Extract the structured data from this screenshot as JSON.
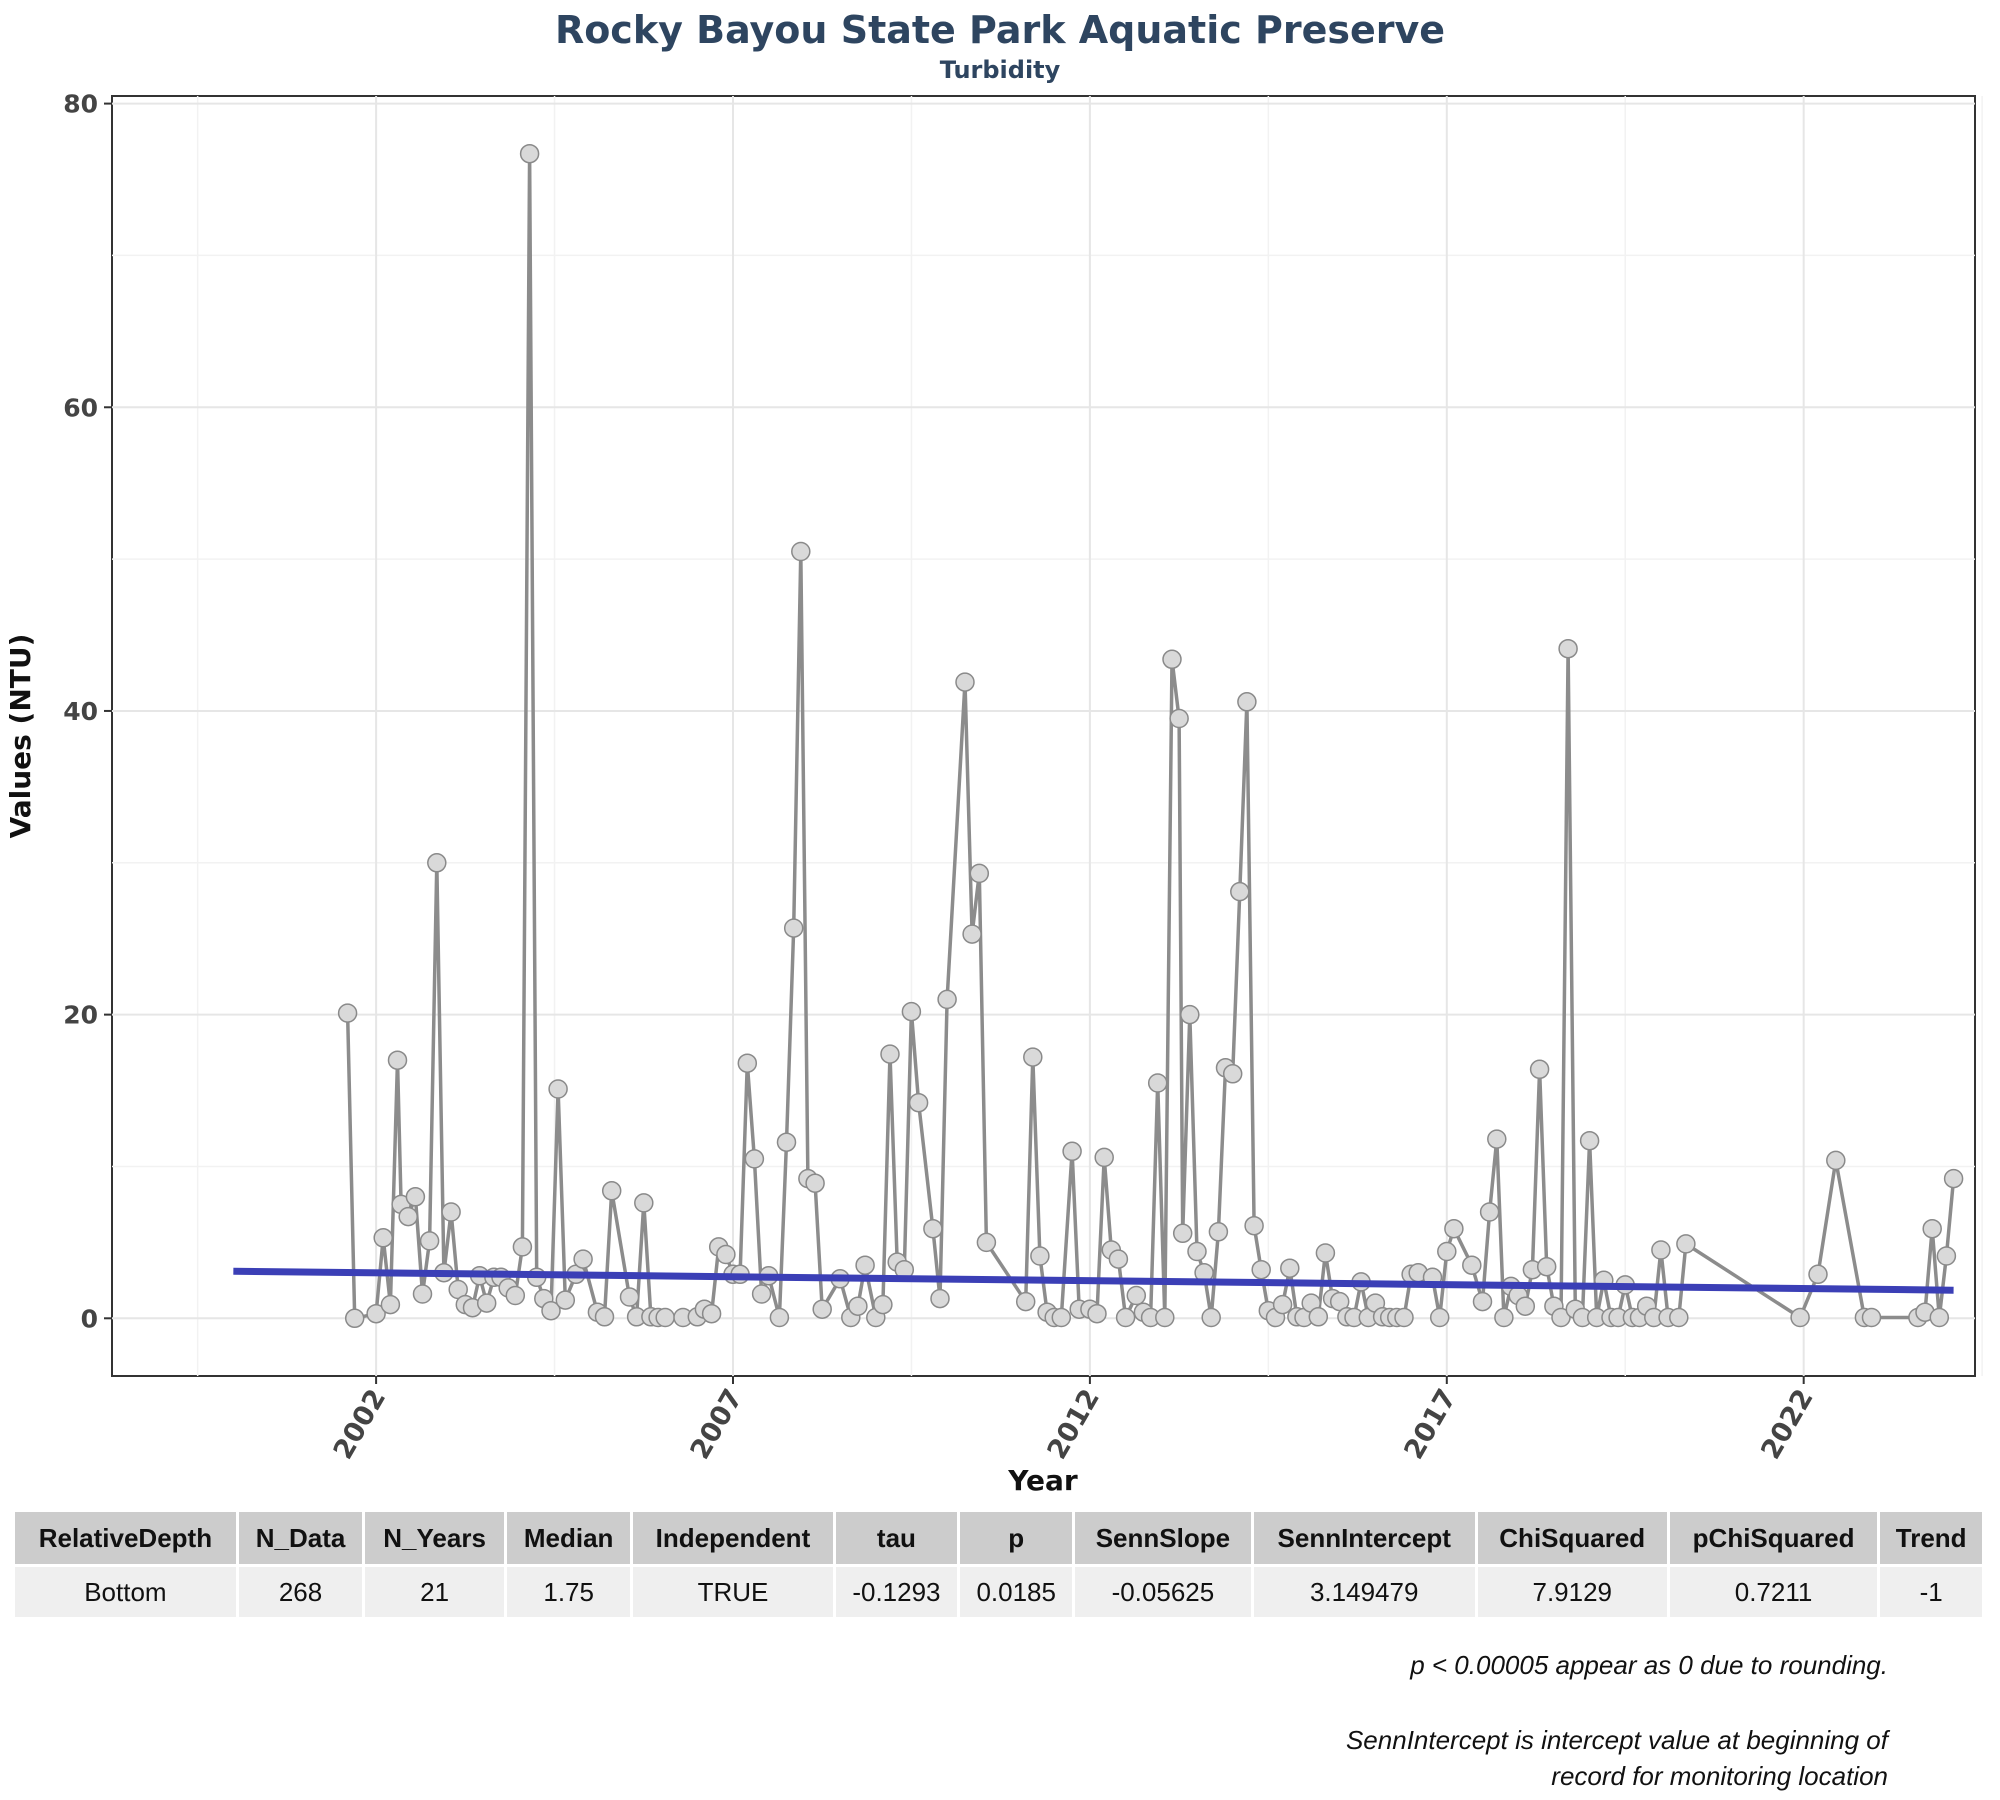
{
  "title": "Rocky Bayou State Park Aquatic Preserve",
  "subtitle": "Turbidity",
  "chart_data": {
    "type": "line",
    "xlabel": "Year",
    "ylabel": "Values (NTU)",
    "xlim": [
      1998.3,
      2024.4
    ],
    "ylim": [
      -3.8,
      80.5
    ],
    "x_ticks": [
      2002,
      2007,
      2012,
      2017,
      2022
    ],
    "y_ticks": [
      0,
      20,
      40,
      60,
      80
    ],
    "grid": true,
    "colors": {
      "series_line": "#8c8c8c",
      "series_point": "#d9d9d9",
      "trend_line": "#3b3fb6"
    },
    "series": [
      {
        "values": [
          [
            2001.6,
            20.1
          ],
          [
            2001.7,
            0
          ],
          [
            2002.0,
            0.3
          ],
          [
            2002.1,
            5.3
          ],
          [
            2002.2,
            0.9
          ],
          [
            2002.3,
            17.0
          ],
          [
            2002.35,
            7.5
          ],
          [
            2002.45,
            6.7
          ],
          [
            2002.55,
            8.0
          ],
          [
            2002.65,
            1.6
          ],
          [
            2002.75,
            5.1
          ],
          [
            2002.85,
            30.0
          ],
          [
            2002.95,
            3.0
          ],
          [
            2003.05,
            7.0
          ],
          [
            2003.15,
            1.9
          ],
          [
            2003.25,
            0.9
          ],
          [
            2003.35,
            0.7
          ],
          [
            2003.45,
            2.8
          ],
          [
            2003.55,
            1.0
          ],
          [
            2003.65,
            2.7
          ],
          [
            2003.75,
            2.7
          ],
          [
            2003.85,
            2.0
          ],
          [
            2003.95,
            1.5
          ],
          [
            2004.05,
            4.7
          ],
          [
            2004.15,
            76.7
          ],
          [
            2004.25,
            2.7
          ],
          [
            2004.35,
            1.3
          ],
          [
            2004.45,
            0.5
          ],
          [
            2004.55,
            15.1
          ],
          [
            2004.65,
            1.2
          ],
          [
            2004.8,
            2.9
          ],
          [
            2004.9,
            3.9
          ],
          [
            2005.1,
            0.4
          ],
          [
            2005.2,
            0.1
          ],
          [
            2005.3,
            8.4
          ],
          [
            2005.55,
            1.4
          ],
          [
            2005.65,
            0.1
          ],
          [
            2005.75,
            7.6
          ],
          [
            2005.85,
            0.1
          ],
          [
            2005.95,
            0.05
          ],
          [
            2006.05,
            0.05
          ],
          [
            2006.3,
            0.05
          ],
          [
            2006.5,
            0.1
          ],
          [
            2006.6,
            0.6
          ],
          [
            2006.7,
            0.3
          ],
          [
            2006.8,
            4.7
          ],
          [
            2006.9,
            4.2
          ],
          [
            2007.0,
            2.9
          ],
          [
            2007.1,
            2.9
          ],
          [
            2007.2,
            16.8
          ],
          [
            2007.3,
            10.5
          ],
          [
            2007.4,
            1.6
          ],
          [
            2007.5,
            2.8
          ],
          [
            2007.65,
            0.05
          ],
          [
            2007.75,
            11.6
          ],
          [
            2007.85,
            25.7
          ],
          [
            2007.95,
            50.5
          ],
          [
            2008.05,
            9.2
          ],
          [
            2008.15,
            8.9
          ],
          [
            2008.25,
            0.6
          ],
          [
            2008.5,
            2.6
          ],
          [
            2008.65,
            0.05
          ],
          [
            2008.75,
            0.8
          ],
          [
            2008.85,
            3.5
          ],
          [
            2009.0,
            0.05
          ],
          [
            2009.1,
            0.9
          ],
          [
            2009.2,
            17.4
          ],
          [
            2009.3,
            3.7
          ],
          [
            2009.4,
            3.2
          ],
          [
            2009.5,
            20.2
          ],
          [
            2009.6,
            14.2
          ],
          [
            2009.8,
            5.9
          ],
          [
            2009.9,
            1.3
          ],
          [
            2010.0,
            21.0
          ],
          [
            2010.25,
            41.9
          ],
          [
            2010.35,
            25.3
          ],
          [
            2010.45,
            29.3
          ],
          [
            2010.55,
            5.0
          ],
          [
            2011.1,
            1.1
          ],
          [
            2011.2,
            17.2
          ],
          [
            2011.3,
            4.1
          ],
          [
            2011.4,
            0.4
          ],
          [
            2011.5,
            0.05
          ],
          [
            2011.6,
            0.05
          ],
          [
            2011.75,
            11.0
          ],
          [
            2011.85,
            0.6
          ],
          [
            2012.0,
            0.6
          ],
          [
            2012.1,
            0.3
          ],
          [
            2012.2,
            10.6
          ],
          [
            2012.3,
            4.5
          ],
          [
            2012.4,
            3.9
          ],
          [
            2012.5,
            0.05
          ],
          [
            2012.65,
            1.5
          ],
          [
            2012.75,
            0.4
          ],
          [
            2012.85,
            0.05
          ],
          [
            2012.95,
            15.5
          ],
          [
            2013.05,
            0.05
          ],
          [
            2013.15,
            43.4
          ],
          [
            2013.25,
            39.5
          ],
          [
            2013.3,
            5.6
          ],
          [
            2013.4,
            20.0
          ],
          [
            2013.5,
            4.4
          ],
          [
            2013.6,
            3.0
          ],
          [
            2013.7,
            0.05
          ],
          [
            2013.8,
            5.7
          ],
          [
            2013.9,
            16.5
          ],
          [
            2014.0,
            16.1
          ],
          [
            2014.1,
            28.1
          ],
          [
            2014.2,
            40.6
          ],
          [
            2014.3,
            6.1
          ],
          [
            2014.4,
            3.2
          ],
          [
            2014.5,
            0.5
          ],
          [
            2014.6,
            0.05
          ],
          [
            2014.7,
            0.9
          ],
          [
            2014.8,
            3.3
          ],
          [
            2014.9,
            0.1
          ],
          [
            2015.0,
            0.05
          ],
          [
            2015.1,
            1.0
          ],
          [
            2015.2,
            0.1
          ],
          [
            2015.3,
            4.3
          ],
          [
            2015.4,
            1.3
          ],
          [
            2015.5,
            1.1
          ],
          [
            2015.6,
            0.1
          ],
          [
            2015.7,
            0.05
          ],
          [
            2015.8,
            2.4
          ],
          [
            2015.9,
            0.05
          ],
          [
            2016.0,
            1.0
          ],
          [
            2016.1,
            0.1
          ],
          [
            2016.2,
            0.05
          ],
          [
            2016.3,
            0.05
          ],
          [
            2016.4,
            0.05
          ],
          [
            2016.5,
            2.9
          ],
          [
            2016.6,
            3.0
          ],
          [
            2016.8,
            2.7
          ],
          [
            2016.9,
            0.05
          ],
          [
            2017.0,
            4.4
          ],
          [
            2017.1,
            5.9
          ],
          [
            2017.35,
            3.5
          ],
          [
            2017.5,
            1.1
          ],
          [
            2017.6,
            7.0
          ],
          [
            2017.7,
            11.8
          ],
          [
            2017.8,
            0.05
          ],
          [
            2017.9,
            2.1
          ],
          [
            2018.0,
            1.5
          ],
          [
            2018.1,
            0.8
          ],
          [
            2018.2,
            3.2
          ],
          [
            2018.3,
            16.4
          ],
          [
            2018.4,
            3.4
          ],
          [
            2018.5,
            0.8
          ],
          [
            2018.6,
            0.05
          ],
          [
            2018.7,
            44.1
          ],
          [
            2018.8,
            0.6
          ],
          [
            2018.9,
            0.05
          ],
          [
            2019.0,
            11.7
          ],
          [
            2019.1,
            0.05
          ],
          [
            2019.2,
            2.5
          ],
          [
            2019.3,
            0.05
          ],
          [
            2019.4,
            0.05
          ],
          [
            2019.5,
            2.2
          ],
          [
            2019.6,
            0.05
          ],
          [
            2019.7,
            0.05
          ],
          [
            2019.8,
            0.8
          ],
          [
            2019.9,
            0.05
          ],
          [
            2020.0,
            4.5
          ],
          [
            2020.1,
            0.05
          ],
          [
            2020.25,
            0.05
          ],
          [
            2020.35,
            4.9
          ],
          [
            2021.95,
            0.05
          ],
          [
            2022.2,
            2.9
          ],
          [
            2022.45,
            10.4
          ],
          [
            2022.85,
            0.05
          ],
          [
            2022.95,
            0.05
          ],
          [
            2023.6,
            0.05
          ],
          [
            2023.7,
            0.4
          ],
          [
            2023.8,
            5.9
          ],
          [
            2023.9,
            0.05
          ],
          [
            2024.0,
            4.1
          ],
          [
            2024.1,
            9.2
          ]
        ]
      }
    ],
    "trend_line": {
      "x": [
        2000.0,
        2024.1
      ],
      "y": [
        3.1,
        1.85
      ]
    }
  },
  "table": {
    "headers": [
      "RelativeDepth",
      "N_Data",
      "N_Years",
      "Median",
      "Independent",
      "tau",
      "p",
      "SennSlope",
      "SennIntercept",
      "ChiSquared",
      "pChiSquared",
      "Trend"
    ],
    "rows": [
      [
        "Bottom",
        "268",
        "21",
        "1.75",
        "TRUE",
        "-0.1293",
        "0.0185",
        "-0.05625",
        "3.149479",
        "7.9129",
        "0.7211",
        "-1"
      ]
    ]
  },
  "notes": {
    "rounding": "p < 0.00005 appear as 0 due to rounding.",
    "intercept_line1": "SennIntercept is intercept value at beginning of",
    "intercept_line2": "record for monitoring location"
  }
}
